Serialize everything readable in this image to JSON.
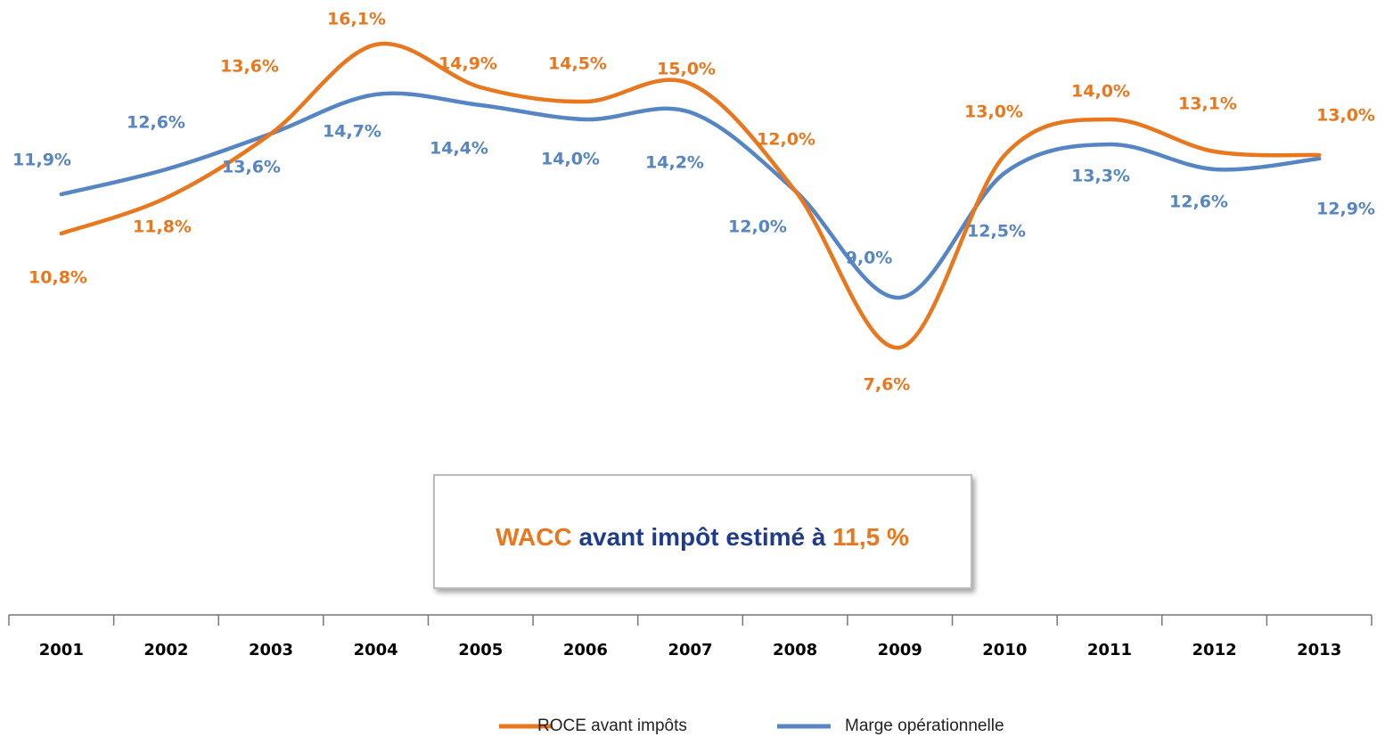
{
  "chart_data": {
    "type": "line",
    "categories": [
      "2001",
      "2002",
      "2003",
      "2004",
      "2005",
      "2006",
      "2007",
      "2008",
      "2009",
      "2010",
      "2011",
      "2012",
      "2013"
    ],
    "series": [
      {
        "name": "ROCE avant impôts",
        "color": "#e8771e",
        "values": [
          10.8,
          11.8,
          13.6,
          16.1,
          14.9,
          14.5,
          15.0,
          12.0,
          7.6,
          13.0,
          14.0,
          13.1,
          13.0
        ],
        "value_labels": [
          "10,8%",
          "11,8%",
          "13,6%",
          "16,1%",
          "14,9%",
          "14,5%",
          "15,0%",
          "12,0%",
          "7,6%",
          "13,0%",
          "14,0%",
          "13,1%",
          "13,0%"
        ]
      },
      {
        "name": "Marge opérationnelle",
        "color": "#5585c3",
        "values": [
          11.9,
          12.6,
          13.6,
          14.7,
          14.4,
          14.0,
          14.2,
          12.0,
          9.0,
          12.5,
          13.3,
          12.6,
          12.9
        ],
        "value_labels": [
          "11,9%",
          "12,6%",
          "13,6%",
          "14,7%",
          "14,4%",
          "14,0%",
          "14,2%",
          "12,0%",
          "9,0%",
          "12,5%",
          "13,3%",
          "12,6%",
          "12,9%"
        ]
      }
    ],
    "ylim": [
      0,
      17
    ],
    "legend": "bottom",
    "annotation": {
      "parts": [
        "WACC",
        "avant impôt estimé à",
        "11,5 %"
      ]
    }
  }
}
